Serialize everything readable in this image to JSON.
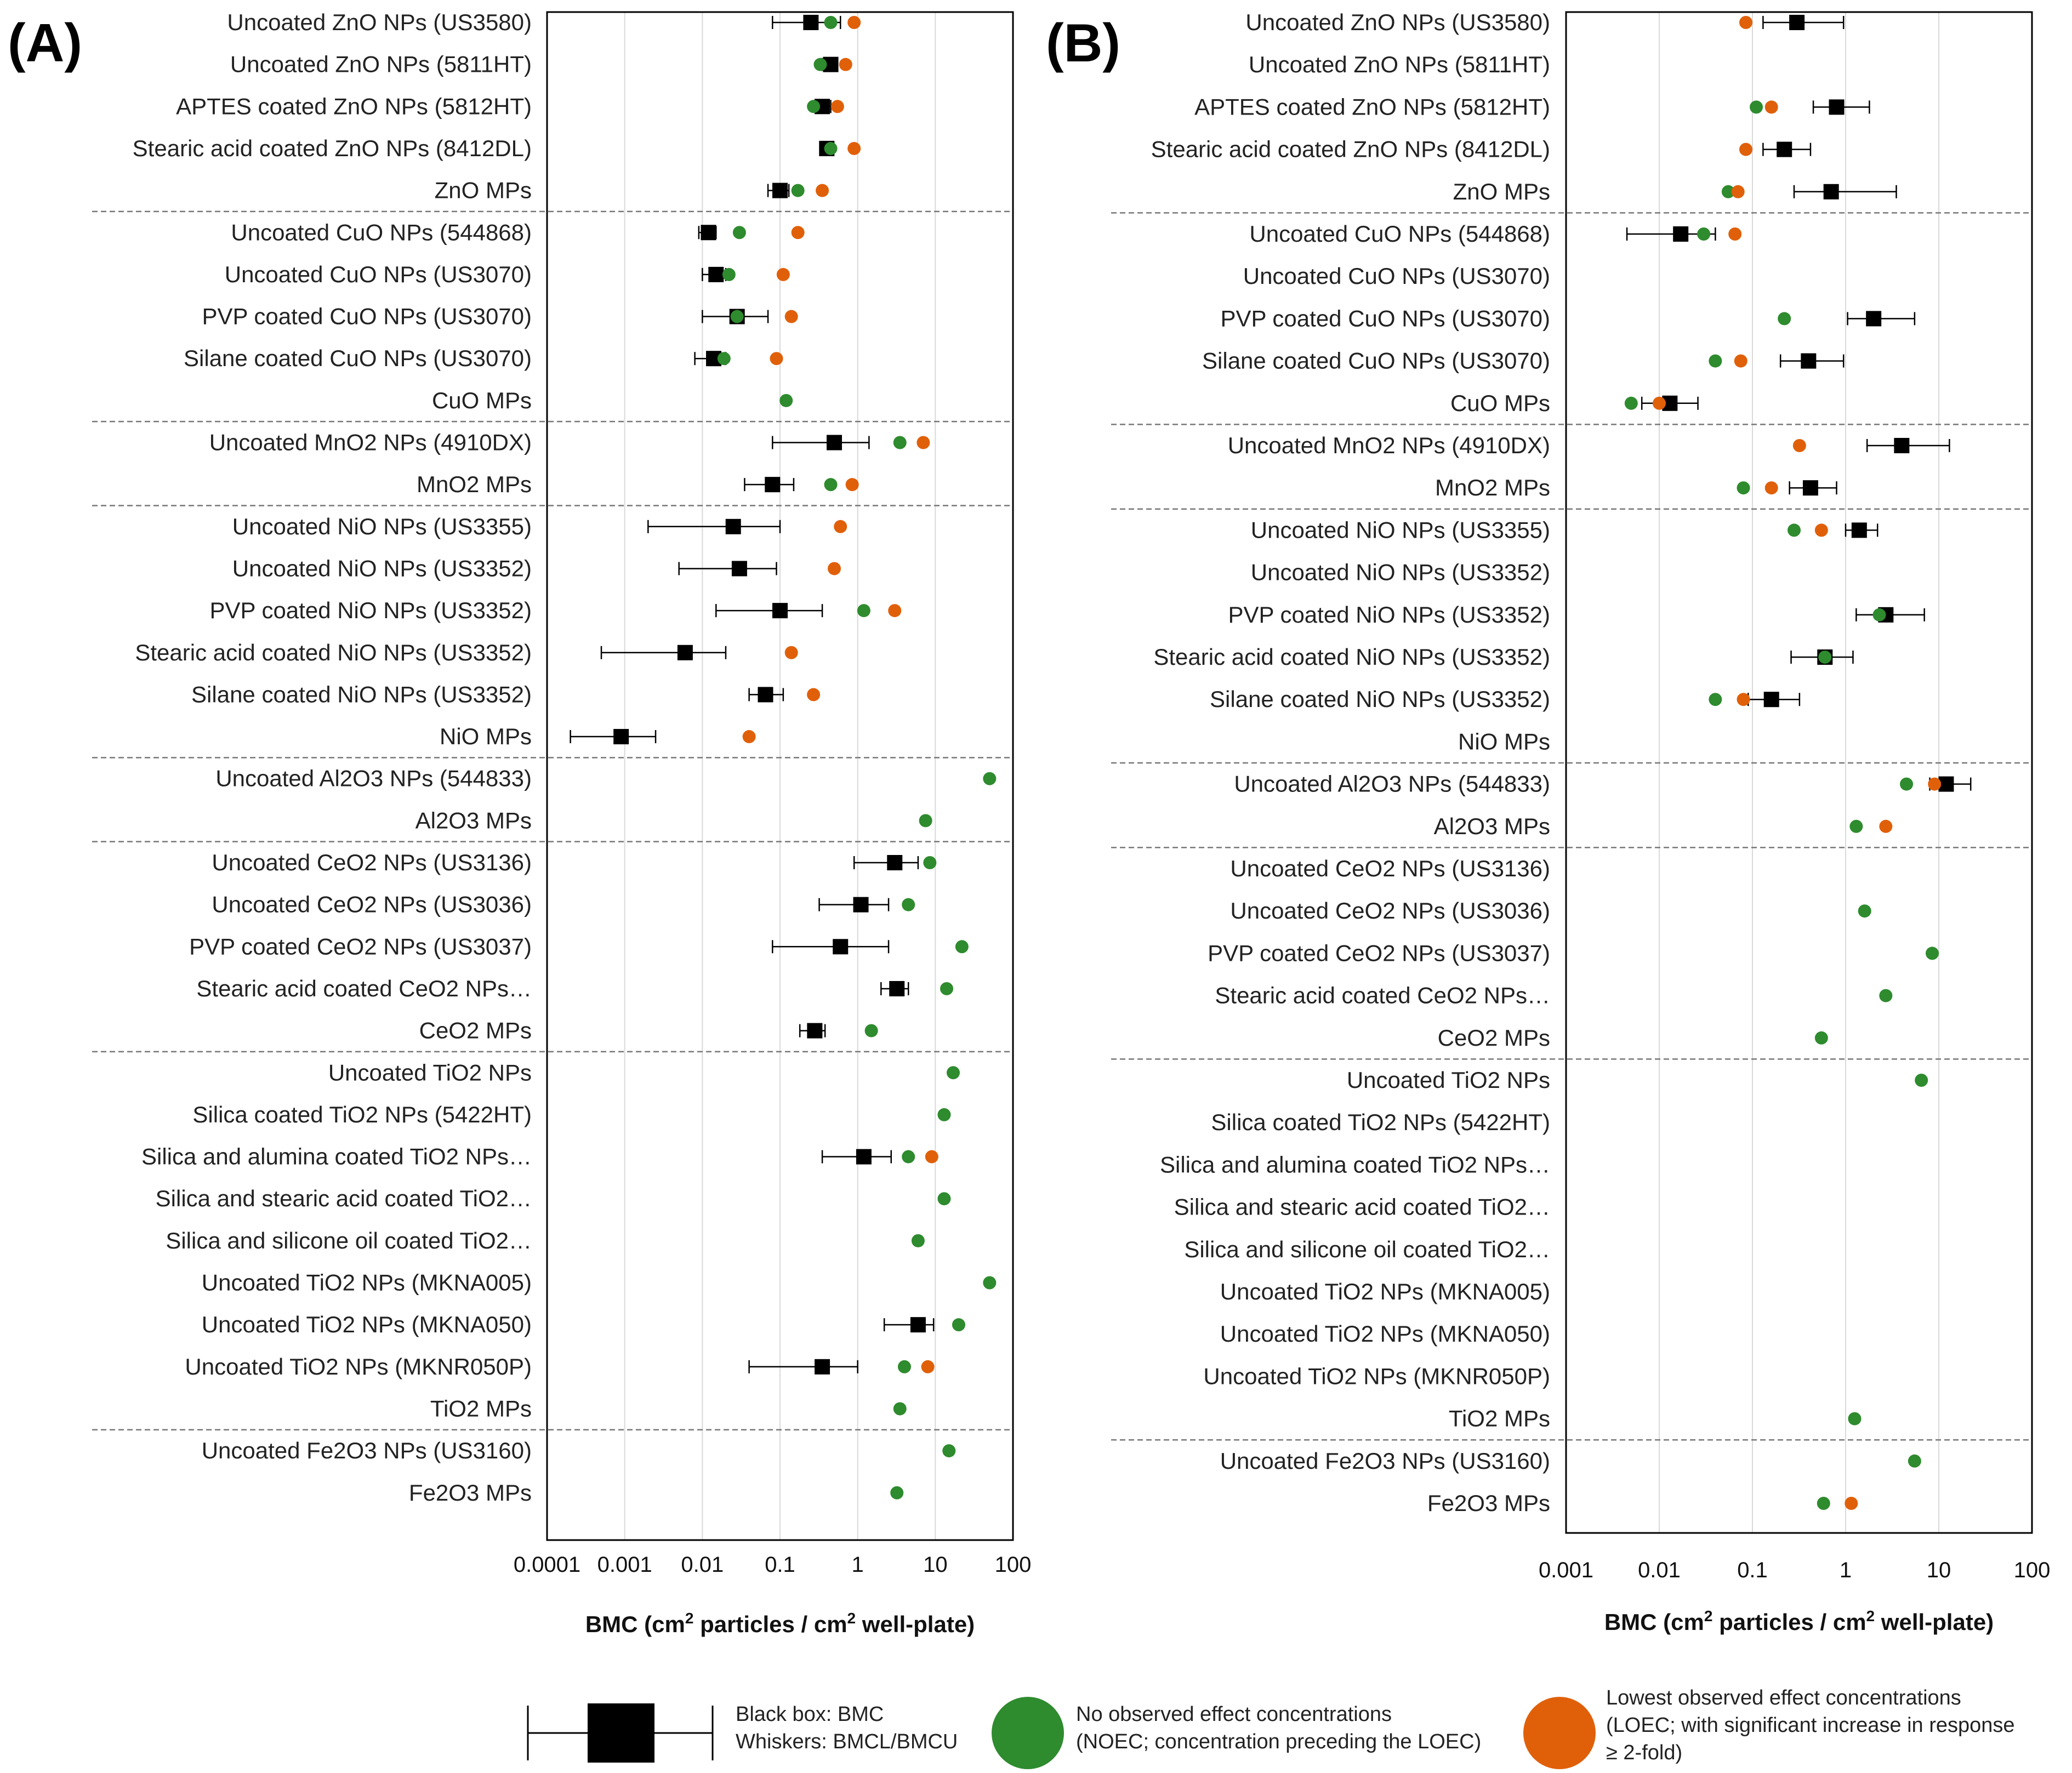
{
  "colors": {
    "bmc": "#000000",
    "noec": "#2e8b2e",
    "loec": "#e0600a",
    "grid": "#d9d9d9",
    "divider": "#777777"
  },
  "chart_data": [
    {
      "type": "scatter",
      "panel_label": "(A)",
      "xscale": "log",
      "xlim": [
        0.0001,
        100
      ],
      "ticks": [
        "0.0001",
        "0.001",
        "0.01",
        "0.1",
        "1",
        "10",
        "100"
      ],
      "xlabel_main": "BMC (cm",
      "xlabel_sup1": "2",
      "xlabel_mid": " particles / cm",
      "xlabel_sup2": "2",
      "xlabel_end": " well-plate)",
      "dividers_after": [
        4,
        9,
        11,
        17,
        19,
        24,
        33
      ],
      "categories": [
        "Uncoated ZnO NPs (US3580)",
        "Uncoated ZnO NPs (5811HT)",
        "APTES coated ZnO NPs (5812HT)",
        "Stearic acid coated ZnO NPs (8412DL)",
        "ZnO MPs",
        "Uncoated CuO NPs (544868)",
        "Uncoated CuO NPs (US3070)",
        "PVP coated CuO NPs (US3070)",
        "Silane coated CuO NPs (US3070)",
        "CuO MPs",
        "Uncoated MnO2 NPs (4910DX)",
        "MnO2 MPs",
        "Uncoated NiO NPs (US3355)",
        "Uncoated NiO NPs (US3352)",
        "PVP coated NiO NPs (US3352)",
        "Stearic acid coated NiO NPs (US3352)",
        "Silane coated NiO NPs (US3352)",
        "NiO MPs",
        "Uncoated Al2O3 NPs (544833)",
        "Al2O3 MPs",
        "Uncoated CeO2 NPs (US3136)",
        "Uncoated CeO2 NPs (US3036)",
        "PVP coated CeO2 NPs (US3037)",
        "Stearic acid coated CeO2 NPs…",
        "CeO2 MPs",
        "Uncoated TiO2 NPs",
        "Silica coated TiO2 NPs (5422HT)",
        "Silica and alumina coated TiO2 NPs…",
        "Silica and stearic acid coated TiO2…",
        "Silica and silicone oil coated TiO2…",
        "Uncoated TiO2 NPs (MKNA005)",
        "Uncoated TiO2 NPs (MKNA050)",
        "Uncoated TiO2 NPs (MKNR050P)",
        "TiO2 MPs",
        "Uncoated Fe2O3 NPs (US3160)",
        "Fe2O3 MPs"
      ],
      "series": [
        {
          "name": "BMC",
          "values": [
            0.25,
            0.45,
            0.35,
            0.4,
            0.1,
            0.012,
            0.015,
            0.028,
            0.014,
            null,
            0.5,
            0.08,
            0.025,
            0.03,
            0.1,
            0.006,
            0.065,
            0.0009,
            null,
            null,
            3.0,
            1.1,
            0.6,
            3.2,
            0.28,
            null,
            null,
            1.2,
            null,
            null,
            null,
            6.0,
            0.35,
            null,
            null,
            null
          ]
        },
        {
          "name": "BMCL",
          "values": [
            0.08,
            0.35,
            0.28,
            0.33,
            0.07,
            0.009,
            0.01,
            0.01,
            0.008,
            null,
            0.08,
            0.035,
            0.002,
            0.005,
            0.015,
            0.0005,
            0.04,
            0.0002,
            null,
            null,
            0.9,
            0.32,
            0.08,
            2.0,
            0.18,
            null,
            null,
            0.35,
            null,
            null,
            null,
            2.2,
            0.04,
            null,
            null,
            null
          ]
        },
        {
          "name": "BMCU",
          "values": [
            0.6,
            0.55,
            0.45,
            0.48,
            0.13,
            0.015,
            0.02,
            0.07,
            0.02,
            null,
            1.4,
            0.15,
            0.1,
            0.09,
            0.35,
            0.02,
            0.11,
            0.0025,
            null,
            null,
            6.0,
            2.5,
            2.5,
            4.5,
            0.38,
            null,
            null,
            2.7,
            null,
            null,
            null,
            9.5,
            1.0,
            null,
            null,
            null
          ]
        },
        {
          "name": "NOEC",
          "values": [
            0.45,
            0.33,
            0.27,
            0.45,
            0.17,
            0.03,
            0.022,
            0.028,
            0.019,
            0.12,
            3.5,
            0.45,
            null,
            null,
            1.2,
            null,
            null,
            null,
            50,
            7.5,
            8.5,
            4.5,
            22,
            14,
            1.5,
            17,
            13,
            4.5,
            13,
            6,
            50,
            20,
            4,
            3.5,
            15,
            3.2
          ]
        },
        {
          "name": "LOEC",
          "values": [
            0.9,
            0.7,
            0.55,
            0.9,
            0.35,
            0.17,
            0.11,
            0.14,
            0.09,
            null,
            7,
            0.85,
            0.6,
            0.5,
            3,
            0.14,
            0.27,
            0.04,
            null,
            null,
            null,
            null,
            null,
            null,
            null,
            null,
            null,
            9,
            null,
            null,
            null,
            null,
            8,
            null,
            null,
            null
          ]
        }
      ]
    },
    {
      "type": "scatter",
      "panel_label": "(B)",
      "xscale": "log",
      "xlim": [
        0.001,
        100
      ],
      "ticks": [
        "0.001",
        "0.01",
        "0.1",
        "1",
        "10",
        "100"
      ],
      "xlabel_main": "BMC (cm",
      "xlabel_sup1": "2",
      "xlabel_mid": " particles / cm",
      "xlabel_sup2": "2",
      "xlabel_end": " well-plate)",
      "dividers_after": [
        4,
        9,
        11,
        17,
        19,
        24,
        33
      ],
      "categories": [
        "Uncoated ZnO NPs (US3580)",
        "Uncoated ZnO NPs (5811HT)",
        "APTES coated ZnO NPs (5812HT)",
        "Stearic acid coated ZnO NPs (8412DL)",
        "ZnO MPs",
        "Uncoated CuO NPs (544868)",
        "Uncoated CuO NPs (US3070)",
        "PVP coated CuO NPs (US3070)",
        "Silane coated CuO NPs (US3070)",
        "CuO MPs",
        "Uncoated MnO2 NPs (4910DX)",
        "MnO2 MPs",
        "Uncoated NiO NPs (US3355)",
        "Uncoated NiO NPs (US3352)",
        "PVP coated NiO NPs (US3352)",
        "Stearic acid coated NiO NPs (US3352)",
        "Silane coated NiO NPs (US3352)",
        "NiO MPs",
        "Uncoated Al2O3 NPs (544833)",
        "Al2O3 MPs",
        "Uncoated CeO2 NPs (US3136)",
        "Uncoated CeO2 NPs (US3036)",
        "PVP coated CeO2 NPs (US3037)",
        "Stearic acid coated CeO2 NPs…",
        "CeO2 MPs",
        "Uncoated TiO2 NPs",
        "Silica coated TiO2 NPs (5422HT)",
        "Silica and alumina coated TiO2 NPs…",
        "Silica and stearic acid coated TiO2…",
        "Silica and silicone oil coated TiO2…",
        "Uncoated TiO2 NPs (MKNA005)",
        "Uncoated TiO2 NPs (MKNA050)",
        "Uncoated TiO2 NPs (MKNR050P)",
        "TiO2 MPs",
        "Uncoated Fe2O3 NPs (US3160)",
        "Fe2O3 MPs"
      ],
      "series": [
        {
          "name": "BMC",
          "values": [
            0.3,
            null,
            0.8,
            0.22,
            0.7,
            0.017,
            null,
            2.0,
            0.4,
            0.013,
            4.0,
            0.42,
            1.4,
            null,
            2.7,
            0.6,
            0.16,
            null,
            12,
            null,
            null,
            null,
            null,
            null,
            null,
            null,
            null,
            null,
            null,
            null,
            null,
            null,
            null,
            null,
            null,
            null
          ]
        },
        {
          "name": "BMCL",
          "values": [
            0.13,
            null,
            0.45,
            0.13,
            0.28,
            0.0045,
            null,
            1.05,
            0.2,
            0.0065,
            1.7,
            0.25,
            1.0,
            null,
            1.3,
            0.26,
            0.09,
            null,
            8,
            null,
            null,
            null,
            null,
            null,
            null,
            null,
            null,
            null,
            null,
            null,
            null,
            null,
            null,
            null,
            null,
            null
          ]
        },
        {
          "name": "BMCU",
          "values": [
            0.95,
            null,
            1.8,
            0.42,
            3.5,
            0.04,
            null,
            5.5,
            0.95,
            0.026,
            13,
            0.8,
            2.2,
            null,
            7.0,
            1.2,
            0.32,
            null,
            22,
            null,
            null,
            null,
            null,
            null,
            null,
            null,
            null,
            null,
            null,
            null,
            null,
            null,
            null,
            null,
            null,
            null
          ]
        },
        {
          "name": "NOEC",
          "values": [
            null,
            null,
            0.11,
            null,
            0.055,
            0.03,
            null,
            0.22,
            0.04,
            0.005,
            null,
            0.08,
            0.28,
            null,
            2.3,
            0.6,
            0.04,
            null,
            4.5,
            1.3,
            null,
            1.6,
            8.5,
            2.7,
            0.55,
            6.5,
            null,
            null,
            null,
            null,
            null,
            null,
            null,
            1.25,
            5.5,
            0.58
          ]
        },
        {
          "name": "LOEC",
          "values": [
            0.085,
            null,
            0.16,
            0.085,
            0.07,
            0.065,
            null,
            null,
            0.075,
            0.01,
            0.32,
            0.16,
            0.55,
            null,
            null,
            null,
            0.08,
            null,
            9,
            2.7,
            null,
            null,
            null,
            null,
            null,
            null,
            null,
            null,
            null,
            null,
            null,
            null,
            null,
            null,
            null,
            1.15
          ]
        }
      ]
    }
  ],
  "legend": {
    "bmc_line1": "Black box: BMC",
    "bmc_line2": "Whiskers: BMCL/BMCU",
    "noec_line1": "No observed effect concentrations",
    "noec_line2": "(NOEC; concentration preceding the LOEC)",
    "loec_line1": "Lowest observed effect concentrations",
    "loec_line2": "(LOEC; with significant increase in response",
    "loec_line3": "≥ 2-fold)"
  }
}
